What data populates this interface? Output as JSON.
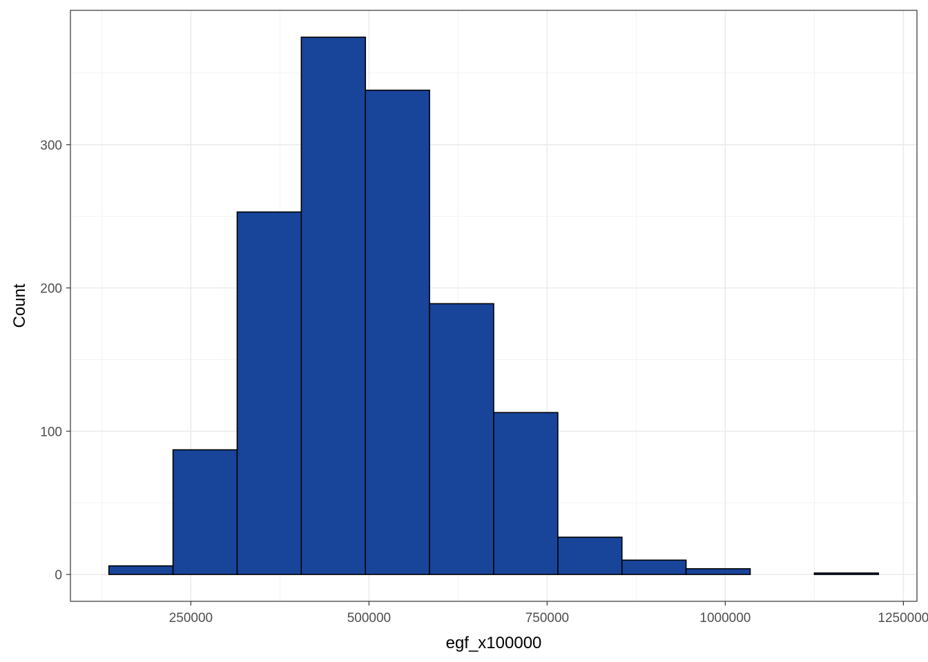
{
  "chart_data": {
    "type": "bar",
    "subtype": "histogram",
    "title": "",
    "xlabel": "egf_x100000",
    "ylabel": "Count",
    "bin_width": 90000,
    "bins": [
      {
        "start": 135000,
        "end": 225000,
        "count": 6
      },
      {
        "start": 225000,
        "end": 315000,
        "count": 87
      },
      {
        "start": 315000,
        "end": 405000,
        "count": 253
      },
      {
        "start": 405000,
        "end": 495000,
        "count": 375
      },
      {
        "start": 495000,
        "end": 585000,
        "count": 338
      },
      {
        "start": 585000,
        "end": 675000,
        "count": 189
      },
      {
        "start": 675000,
        "end": 765000,
        "count": 113
      },
      {
        "start": 765000,
        "end": 855000,
        "count": 26
      },
      {
        "start": 855000,
        "end": 945000,
        "count": 10
      },
      {
        "start": 945000,
        "end": 1035000,
        "count": 4
      },
      {
        "start": 1035000,
        "end": 1125000,
        "count": 0
      },
      {
        "start": 1125000,
        "end": 1215000,
        "count": 1
      }
    ],
    "xlim": [
      81000,
      1269000
    ],
    "ylim": [
      -18.75,
      393.75
    ],
    "x_ticks": [
      250000,
      500000,
      750000,
      1000000,
      1250000
    ],
    "x_tick_labels": [
      "250000",
      "500000",
      "750000",
      "1000000",
      "1250000"
    ],
    "y_ticks": [
      0,
      100,
      200,
      300
    ],
    "y_tick_labels": [
      "0",
      "100",
      "200",
      "300"
    ],
    "grid": true,
    "bar_fill": "#18449A",
    "bar_outline": "#000000",
    "legend": "none",
    "theme": "bw"
  }
}
